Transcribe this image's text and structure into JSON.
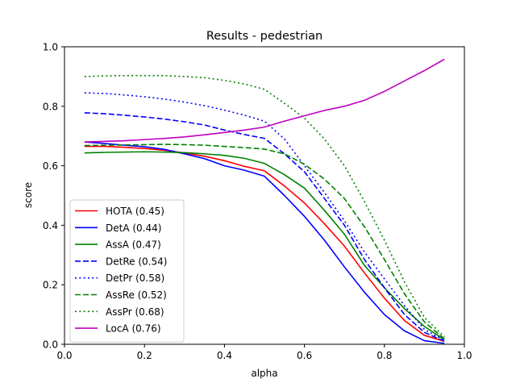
{
  "chart_data": {
    "type": "line",
    "title": "Results - pedestrian",
    "xlabel": "alpha",
    "ylabel": "score",
    "xlim": [
      0.0,
      1.0
    ],
    "ylim": [
      0.0,
      1.0
    ],
    "xticks": [
      "0.0",
      "0.2",
      "0.4",
      "0.6",
      "0.8",
      "1.0"
    ],
    "yticks": [
      "0.0",
      "0.2",
      "0.4",
      "0.6",
      "0.8",
      "1.0"
    ],
    "legend_position": "lower-left",
    "grid": false,
    "x": [
      0.05,
      0.1,
      0.15,
      0.2,
      0.25,
      0.3,
      0.35,
      0.4,
      0.45,
      0.5,
      0.55,
      0.6,
      0.65,
      0.7,
      0.75,
      0.8,
      0.85,
      0.9,
      0.95
    ],
    "series": [
      {
        "name": "HOTA (0.45)",
        "color": "#ff0000",
        "style": "solid",
        "values": [
          0.665,
          0.665,
          0.662,
          0.658,
          0.652,
          0.643,
          0.632,
          0.617,
          0.598,
          0.583,
          0.532,
          0.475,
          0.405,
          0.33,
          0.24,
          0.155,
          0.08,
          0.03,
          0.01
        ]
      },
      {
        "name": "DetA (0.44)",
        "color": "#0000ff",
        "style": "solid",
        "values": [
          0.68,
          0.675,
          0.669,
          0.664,
          0.655,
          0.64,
          0.624,
          0.6,
          0.585,
          0.565,
          0.5,
          0.43,
          0.35,
          0.26,
          0.175,
          0.1,
          0.045,
          0.012,
          0.003
        ]
      },
      {
        "name": "AssA (0.47)",
        "color": "#008000",
        "style": "solid",
        "values": [
          0.643,
          0.645,
          0.646,
          0.647,
          0.646,
          0.644,
          0.64,
          0.635,
          0.625,
          0.608,
          0.57,
          0.525,
          0.45,
          0.37,
          0.265,
          0.19,
          0.12,
          0.06,
          0.015
        ]
      },
      {
        "name": "DetRe (0.54)",
        "color": "#0000ff",
        "style": "dashed",
        "values": [
          0.778,
          0.775,
          0.77,
          0.764,
          0.757,
          0.748,
          0.737,
          0.72,
          0.705,
          0.692,
          0.64,
          0.58,
          0.49,
          0.4,
          0.285,
          0.19,
          0.1,
          0.04,
          0.01
        ]
      },
      {
        "name": "DetPr (0.58)",
        "color": "#0000ff",
        "style": "dotted",
        "values": [
          0.845,
          0.843,
          0.838,
          0.832,
          0.824,
          0.814,
          0.802,
          0.787,
          0.77,
          0.75,
          0.69,
          0.6,
          0.51,
          0.415,
          0.31,
          0.22,
          0.13,
          0.05,
          0.012
        ]
      },
      {
        "name": "AssRe (0.52)",
        "color": "#008000",
        "style": "dashed",
        "values": [
          0.668,
          0.669,
          0.67,
          0.671,
          0.672,
          0.671,
          0.669,
          0.665,
          0.661,
          0.656,
          0.64,
          0.605,
          0.555,
          0.49,
          0.395,
          0.285,
          0.17,
          0.075,
          0.018
        ]
      },
      {
        "name": "AssPr (0.68)",
        "color": "#008000",
        "style": "dotted",
        "values": [
          0.9,
          0.902,
          0.903,
          0.903,
          0.903,
          0.9,
          0.896,
          0.887,
          0.875,
          0.857,
          0.81,
          0.76,
          0.69,
          0.6,
          0.48,
          0.35,
          0.21,
          0.09,
          0.025
        ]
      },
      {
        "name": "LocA (0.76)",
        "color": "#bf00bf",
        "style": "solid",
        "values": [
          0.68,
          0.682,
          0.684,
          0.688,
          0.692,
          0.697,
          0.704,
          0.712,
          0.72,
          0.73,
          0.75,
          0.768,
          0.786,
          0.8,
          0.82,
          0.85,
          0.885,
          0.92,
          0.958
        ]
      }
    ]
  }
}
